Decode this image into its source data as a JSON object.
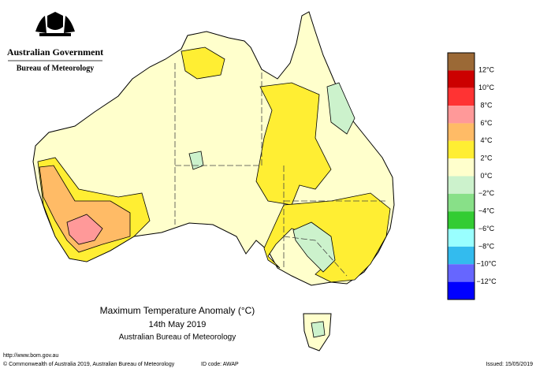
{
  "header": {
    "government": "Australian Government",
    "agency": "Bureau of Meteorology"
  },
  "map": {
    "title": "Maximum Temperature Anomaly (°C)",
    "date": "14th May 2019",
    "source": "Australian Bureau of Meteorology"
  },
  "legend": {
    "colors": [
      "#9b6936",
      "#cc0000",
      "#ff3333",
      "#ff9999",
      "#ffbb66",
      "#ffee33",
      "#ffffcc",
      "#ccf2cc",
      "#88e088",
      "#33cc33",
      "#99ffff",
      "#33bbee",
      "#6666ff",
      "#0000ff"
    ],
    "labels": [
      "12°C",
      "10°C",
      "8°C",
      "6°C",
      "4°C",
      "2°C",
      "0°C",
      "−2°C",
      "−4°C",
      "−6°C",
      "−8°C",
      "−10°C",
      "−12°C"
    ]
  },
  "footer": {
    "url": "http://www.bom.gov.au",
    "copyright": "© Commonwealth of Australia 2019, Australian Bureau of Meteorology",
    "id_code": "ID code: AWAP",
    "issued": "Issued: 15/05/2019"
  }
}
